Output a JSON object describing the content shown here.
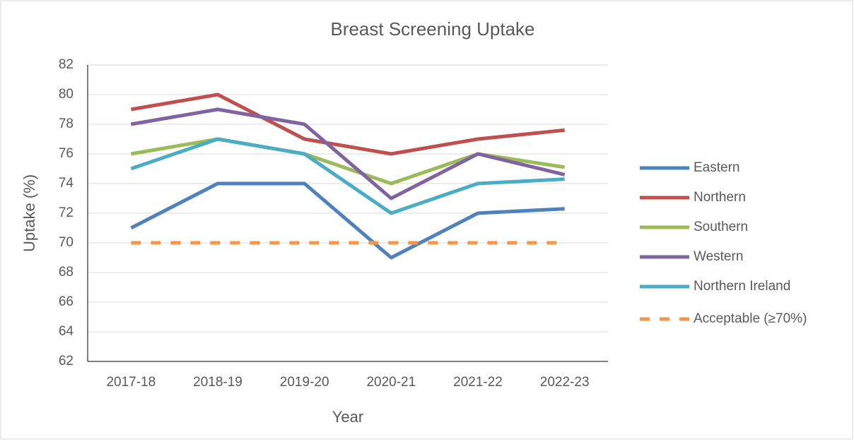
{
  "chart_data": {
    "type": "line",
    "title": "Breast Screening Uptake",
    "x_label": "Year",
    "y_label": "Uptake (%)",
    "categories": [
      "2017-18",
      "2018-19",
      "2019-20",
      "2020-21",
      "2021-22",
      "2022-23"
    ],
    "series": [
      {
        "name": "Eastern",
        "color": "#4f81bd",
        "values": [
          71,
          74,
          74,
          69,
          72,
          72.3
        ]
      },
      {
        "name": "Northern",
        "color": "#c0504d",
        "values": [
          79,
          80,
          77,
          76,
          77,
          77.6
        ]
      },
      {
        "name": "Southern",
        "color": "#9bbb59",
        "values": [
          76,
          77,
          76,
          74,
          76,
          75.1
        ]
      },
      {
        "name": "Western",
        "color": "#8064a2",
        "values": [
          78,
          79,
          78,
          73,
          76,
          74.6
        ]
      },
      {
        "name": "Northern Ireland",
        "color": "#4bacc6",
        "values": [
          75,
          77,
          76,
          72,
          74,
          74.3
        ]
      },
      {
        "name": "Acceptable (≥70%)",
        "color": "#f79646",
        "dashed": true,
        "values": [
          70,
          70,
          70,
          70,
          70,
          70
        ]
      }
    ],
    "ylim": [
      62,
      82
    ],
    "yticks": [
      62,
      64,
      66,
      68,
      70,
      72,
      74,
      76,
      78,
      80,
      82
    ],
    "grid": true,
    "legend": "right"
  }
}
